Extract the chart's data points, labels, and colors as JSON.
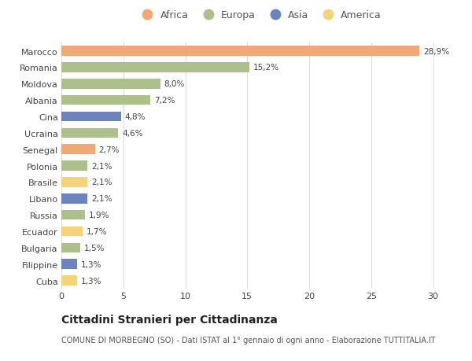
{
  "categories": [
    "Marocco",
    "Romania",
    "Moldova",
    "Albania",
    "Cina",
    "Ucraina",
    "Senegal",
    "Polonia",
    "Brasile",
    "Libano",
    "Russia",
    "Ecuador",
    "Bulgaria",
    "Filippine",
    "Cuba"
  ],
  "values": [
    28.9,
    15.2,
    8.0,
    7.2,
    4.8,
    4.6,
    2.7,
    2.1,
    2.1,
    2.1,
    1.9,
    1.7,
    1.5,
    1.3,
    1.3
  ],
  "labels": [
    "28,9%",
    "15,2%",
    "8,0%",
    "7,2%",
    "4,8%",
    "4,6%",
    "2,7%",
    "2,1%",
    "2,1%",
    "2,1%",
    "1,9%",
    "1,7%",
    "1,5%",
    "1,3%",
    "1,3%"
  ],
  "continents": [
    "Africa",
    "Europa",
    "Europa",
    "Europa",
    "Asia",
    "Europa",
    "Africa",
    "Europa",
    "America",
    "Asia",
    "Europa",
    "America",
    "Europa",
    "Asia",
    "America"
  ],
  "continent_colors": {
    "Africa": "#F0A875",
    "Europa": "#ADBF8A",
    "Asia": "#6B84BB",
    "America": "#F5D37A"
  },
  "legend_order": [
    "Africa",
    "Europa",
    "Asia",
    "America"
  ],
  "xlim": [
    0,
    32
  ],
  "xticks": [
    0,
    5,
    10,
    15,
    20,
    25,
    30
  ],
  "title": "Cittadini Stranieri per Cittadinanza",
  "subtitle": "COMUNE DI MORBEGNO (SO) - Dati ISTAT al 1° gennaio di ogni anno - Elaborazione TUTTITALIA.IT",
  "bg_color": "#FFFFFF",
  "grid_color": "#DDDDDD",
  "bar_height": 0.6,
  "label_fontsize": 7.5,
  "ytick_fontsize": 8,
  "xtick_fontsize": 8,
  "title_fontsize": 10,
  "subtitle_fontsize": 7,
  "legend_fontsize": 9
}
